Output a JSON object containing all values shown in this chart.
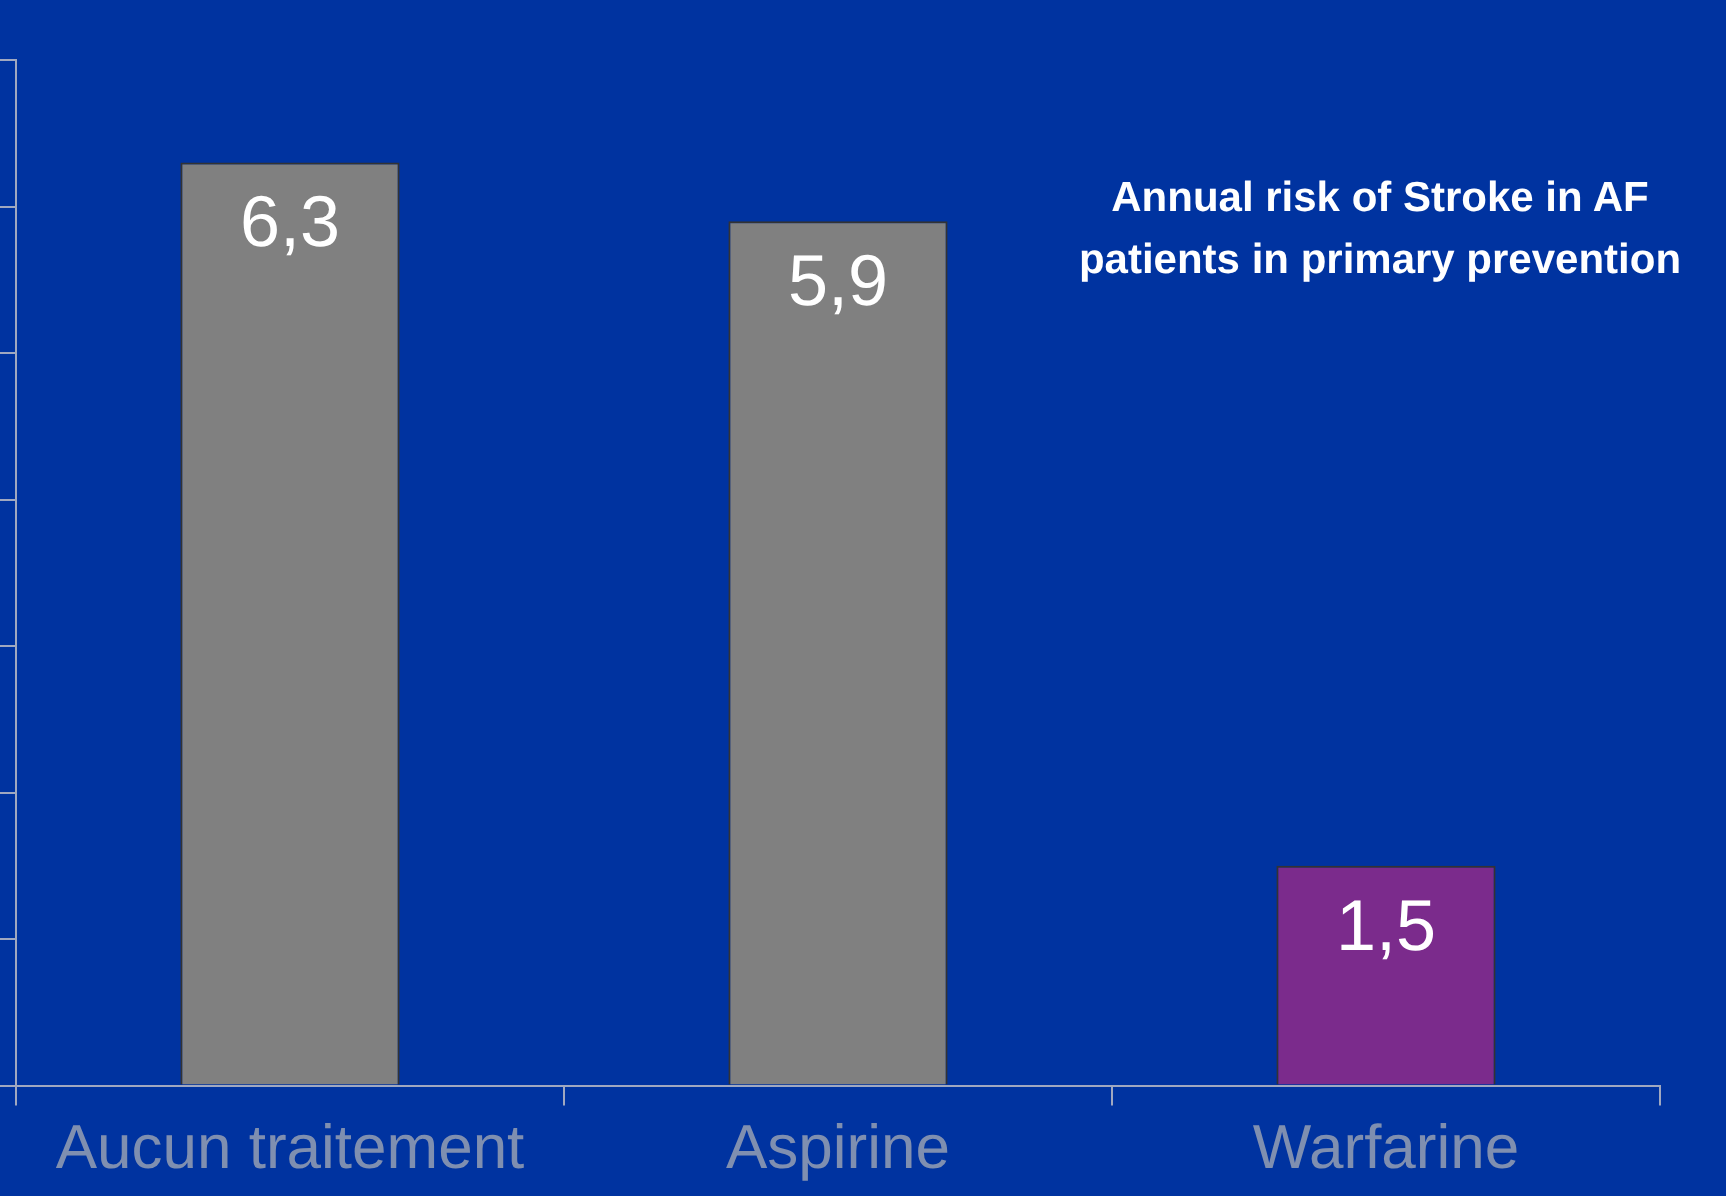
{
  "chart_data": {
    "type": "bar",
    "title": "Annual risk of Stroke in AF patients in primary prevention",
    "categories": [
      "Aucun traitement",
      "Aspirine",
      "Warfarine"
    ],
    "values": [
      6.3,
      5.9,
      1.5
    ],
    "value_labels": [
      "6,3",
      "5,9",
      "1,5"
    ],
    "colors": [
      "#808080",
      "#808080",
      "#7b2b8c"
    ],
    "ylim": [
      0,
      7
    ],
    "yticks": [
      {
        "value": 0,
        "label": null
      },
      {
        "value": 1,
        "label": null
      },
      {
        "value": 2,
        "label": null
      },
      {
        "value": 3,
        "label": null
      },
      {
        "value": 4,
        "label": null
      },
      {
        "value": 5,
        "label": null
      },
      {
        "value": 6,
        "label": null
      },
      {
        "value": 7,
        "label": null
      }
    ],
    "tick_labels": "x",
    "grid": false,
    "legend": false
  }
}
